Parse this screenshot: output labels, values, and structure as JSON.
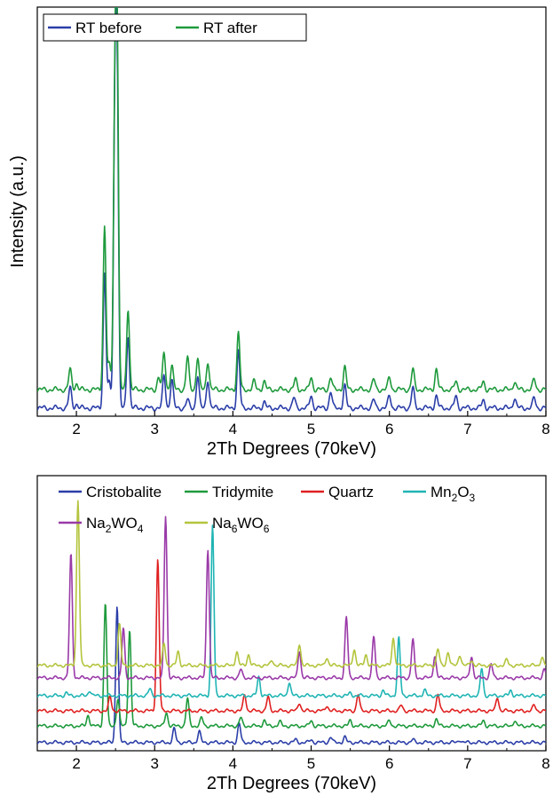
{
  "chart_data": [
    {
      "type": "line",
      "xlabel": "2Th Degrees (70keV)",
      "ylabel": "Intensity (a.u.)",
      "xlim": [
        1.5,
        8.0
      ],
      "ylim": [
        0,
        1.0
      ],
      "xticks": [
        2,
        3,
        4,
        5,
        6,
        7,
        8
      ],
      "x_tick_labels": [
        "2",
        "3",
        "4",
        "5",
        "6",
        "7",
        "8"
      ],
      "legend_position": "top-left",
      "legend_entries": [
        "RT before",
        "RT after"
      ],
      "series": [
        {
          "name": "RT before",
          "color": "#2b3ea8",
          "baseline": 0.02,
          "peaks": [
            [
              1.92,
              0.05
            ],
            [
              2.0,
              0.01
            ],
            [
              2.36,
              0.33
            ],
            [
              2.42,
              0.06
            ],
            [
              2.49,
              0.63
            ],
            [
              2.52,
              0.78
            ],
            [
              2.66,
              0.18
            ],
            [
              3.12,
              0.08
            ],
            [
              3.22,
              0.07
            ],
            [
              3.42,
              0.02
            ],
            [
              3.55,
              0.08
            ],
            [
              3.68,
              0.07
            ],
            [
              4.07,
              0.14
            ],
            [
              4.4,
              0.015
            ],
            [
              4.78,
              0.025
            ],
            [
              5.0,
              0.03
            ],
            [
              5.25,
              0.04
            ],
            [
              5.43,
              0.055
            ],
            [
              5.8,
              0.02
            ],
            [
              6.0,
              0.03
            ],
            [
              6.3,
              0.05
            ],
            [
              6.6,
              0.03
            ],
            [
              6.85,
              0.03
            ],
            [
              7.2,
              0.02
            ],
            [
              7.6,
              0.025
            ],
            [
              7.85,
              0.025
            ]
          ]
        },
        {
          "name": "RT after",
          "color": "#1e9a3c",
          "baseline": 0.065,
          "peaks": [
            [
              1.92,
              0.05
            ],
            [
              2.0,
              0.015
            ],
            [
              2.36,
              0.4
            ],
            [
              2.42,
              0.06
            ],
            [
              2.49,
              0.6
            ],
            [
              2.52,
              0.85
            ],
            [
              2.66,
              0.2
            ],
            [
              3.05,
              0.03
            ],
            [
              3.12,
              0.09
            ],
            [
              3.22,
              0.06
            ],
            [
              3.42,
              0.08
            ],
            [
              3.55,
              0.08
            ],
            [
              3.68,
              0.07
            ],
            [
              4.07,
              0.14
            ],
            [
              4.27,
              0.02
            ],
            [
              4.4,
              0.02
            ],
            [
              4.8,
              0.025
            ],
            [
              5.0,
              0.03
            ],
            [
              5.25,
              0.03
            ],
            [
              5.43,
              0.055
            ],
            [
              5.8,
              0.025
            ],
            [
              6.0,
              0.03
            ],
            [
              6.3,
              0.05
            ],
            [
              6.6,
              0.05
            ],
            [
              6.85,
              0.02
            ],
            [
              7.2,
              0.02
            ],
            [
              7.6,
              0.02
            ],
            [
              7.85,
              0.025
            ]
          ]
        }
      ]
    },
    {
      "type": "line",
      "xlabel": "2Th Degrees (70keV)",
      "ylabel": "",
      "xlim": [
        1.5,
        8.0
      ],
      "ylim": [
        0,
        1.0
      ],
      "xticks": [
        2,
        3,
        4,
        5,
        6,
        7,
        8
      ],
      "x_tick_labels": [
        "2",
        "3",
        "4",
        "5",
        "6",
        "7",
        "8"
      ],
      "legend_position": "top",
      "legend_entries": [
        {
          "base": "Cristobalite"
        },
        {
          "base": "Tridymite"
        },
        {
          "base": "Quartz"
        },
        {
          "base": "Mn",
          "sub1": "2",
          "mid": "O",
          "sub2": "3"
        },
        {
          "base": "Na",
          "sub1": "2",
          "mid": "WO",
          "sub2": "4"
        },
        {
          "base": "Na",
          "sub1": "6",
          "mid": "WO",
          "sub2": "6"
        }
      ],
      "series": [
        {
          "name": "Cristobalite",
          "color": "#2b3ea8",
          "baseline": 0.03,
          "peaks": [
            [
              2.52,
              0.5
            ],
            [
              3.25,
              0.05
            ],
            [
              3.57,
              0.04
            ],
            [
              4.08,
              0.07
            ],
            [
              4.8,
              0.01
            ],
            [
              5.0,
              0.01
            ],
            [
              5.25,
              0.02
            ],
            [
              5.43,
              0.02
            ],
            [
              6.3,
              0.01
            ],
            [
              6.9,
              0.01
            ]
          ]
        },
        {
          "name": "Tridymite",
          "color": "#1e9a3c",
          "baseline": 0.09,
          "peaks": [
            [
              2.15,
              0.04
            ],
            [
              2.37,
              0.45
            ],
            [
              2.53,
              0.1
            ],
            [
              2.68,
              0.35
            ],
            [
              3.15,
              0.05
            ],
            [
              3.42,
              0.1
            ],
            [
              3.6,
              0.03
            ],
            [
              4.1,
              0.03
            ],
            [
              4.4,
              0.02
            ],
            [
              4.6,
              0.015
            ],
            [
              5.0,
              0.02
            ],
            [
              5.5,
              0.02
            ],
            [
              6.0,
              0.02
            ],
            [
              6.6,
              0.025
            ],
            [
              7.2,
              0.02
            ],
            [
              7.6,
              0.02
            ]
          ]
        },
        {
          "name": "Quartz",
          "color": "#e02020",
          "baseline": 0.145,
          "peaks": [
            [
              2.43,
              0.05
            ],
            [
              3.04,
              0.55
            ],
            [
              4.15,
              0.06
            ],
            [
              4.45,
              0.05
            ],
            [
              4.85,
              0.03
            ],
            [
              5.2,
              0.02
            ],
            [
              5.6,
              0.06
            ],
            [
              6.15,
              0.02
            ],
            [
              6.62,
              0.06
            ],
            [
              7.38,
              0.05
            ],
            [
              7.85,
              0.02
            ]
          ]
        },
        {
          "name": "Mn2O3",
          "color": "#20b4b4",
          "baseline": 0.2,
          "peaks": [
            [
              1.87,
              0.01
            ],
            [
              2.17,
              0.02
            ],
            [
              2.94,
              0.025
            ],
            [
              3.74,
              0.62
            ],
            [
              4.33,
              0.07
            ],
            [
              4.72,
              0.05
            ],
            [
              5.5,
              0.01
            ],
            [
              5.92,
              0.02
            ],
            [
              6.12,
              0.21
            ],
            [
              6.45,
              0.02
            ],
            [
              7.18,
              0.1
            ],
            [
              7.55,
              0.02
            ]
          ]
        },
        {
          "name": "Na2WO4",
          "color": "#9a3aa8",
          "baseline": 0.265,
          "peaks": [
            [
              1.93,
              0.45
            ],
            [
              2.6,
              0.18
            ],
            [
              3.14,
              0.59
            ],
            [
              3.68,
              0.47
            ],
            [
              4.1,
              0.03
            ],
            [
              4.85,
              0.1
            ],
            [
              5.45,
              0.22
            ],
            [
              5.8,
              0.15
            ],
            [
              6.3,
              0.14
            ],
            [
              6.58,
              0.08
            ],
            [
              7.05,
              0.08
            ],
            [
              7.3,
              0.05
            ],
            [
              7.98,
              0.03
            ]
          ]
        },
        {
          "name": "Na6WO6",
          "color": "#b4c43c",
          "baseline": 0.31,
          "peaks": [
            [
              2.02,
              0.6
            ],
            [
              2.55,
              0.15
            ],
            [
              3.12,
              0.08
            ],
            [
              3.3,
              0.05
            ],
            [
              4.05,
              0.05
            ],
            [
              4.2,
              0.04
            ],
            [
              4.5,
              0.02
            ],
            [
              4.85,
              0.08
            ],
            [
              5.2,
              0.03
            ],
            [
              5.55,
              0.06
            ],
            [
              5.7,
              0.04
            ],
            [
              6.05,
              0.1
            ],
            [
              6.62,
              0.06
            ],
            [
              6.75,
              0.05
            ],
            [
              6.9,
              0.04
            ],
            [
              7.05,
              0.02
            ],
            [
              7.5,
              0.02
            ],
            [
              7.95,
              0.03
            ]
          ]
        }
      ]
    }
  ]
}
